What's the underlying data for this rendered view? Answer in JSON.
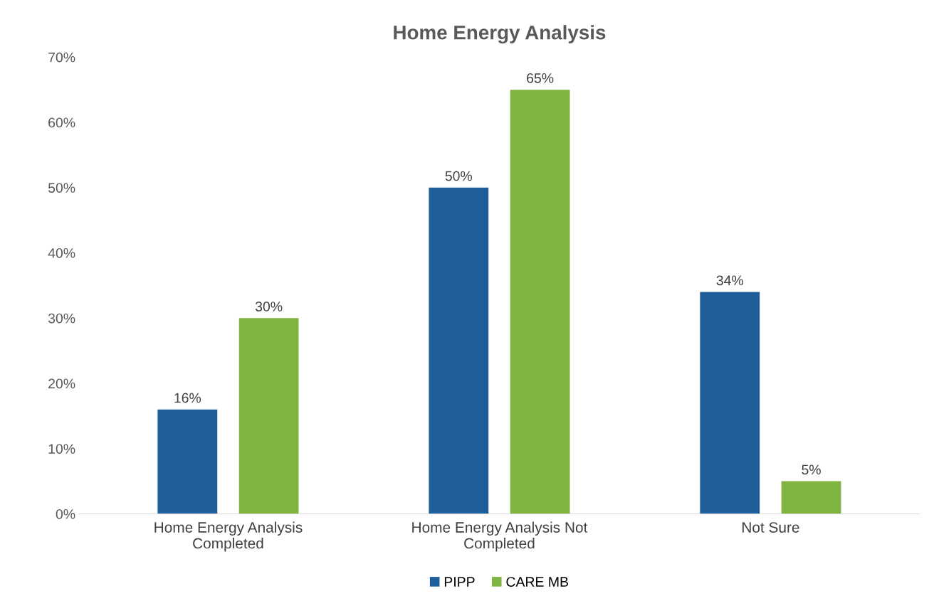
{
  "chart_data": {
    "type": "bar",
    "title": "Home Energy Analysis",
    "categories": [
      "Home Energy Analysis\nCompleted",
      "Home Energy Analysis Not\nCompleted",
      "Not Sure"
    ],
    "series": [
      {
        "name": "PIPP",
        "color": "#1f5f99",
        "values": [
          16,
          50,
          34
        ],
        "value_labels": [
          "16%",
          "50%",
          "34%"
        ]
      },
      {
        "name": "CARE MB",
        "color": "#80b441",
        "values": [
          30,
          65,
          5
        ],
        "value_labels": [
          "30%",
          "65%",
          "5%"
        ]
      }
    ],
    "ylim": [
      0,
      70
    ],
    "yticks": [
      {
        "value": 0,
        "label": "0%"
      },
      {
        "value": 10,
        "label": "10%"
      },
      {
        "value": 20,
        "label": "20%"
      },
      {
        "value": 30,
        "label": "30%"
      },
      {
        "value": 40,
        "label": "40%"
      },
      {
        "value": 50,
        "label": "50%"
      },
      {
        "value": 60,
        "label": "60%"
      },
      {
        "value": 70,
        "label": "70%"
      }
    ],
    "grid": false,
    "legend": "bottom"
  }
}
